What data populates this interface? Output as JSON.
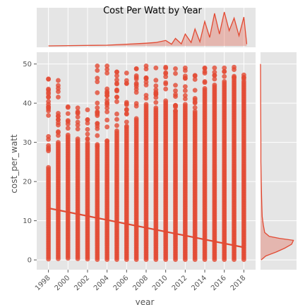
{
  "chart_data": {
    "type": "scatter",
    "title": "Cost Per Watt by Year",
    "xlabel": "year",
    "ylabel": "cost_per_watt",
    "xlim": [
      1996.8,
      2019.2
    ],
    "ylim": [
      -2.5,
      53
    ],
    "x_ticks": [
      "1998",
      "2000",
      "2002",
      "2004",
      "2006",
      "2008",
      "2010",
      "2012",
      "2014",
      "2016",
      "2018"
    ],
    "y_ticks": [
      "0",
      "10",
      "20",
      "30",
      "40",
      "50"
    ],
    "grid": true,
    "style": "ggplot",
    "scatter": {
      "years": [
        1998,
        1999,
        2000,
        2001,
        2002,
        2003,
        2004,
        2005,
        2006,
        2007,
        2008,
        2009,
        2010,
        2011,
        2012,
        2013,
        2014,
        2015,
        2016,
        2017,
        2018
      ],
      "max_values": [
        46.2,
        45.8,
        39.1,
        38.8,
        38.3,
        49.5,
        49.5,
        48.0,
        47.7,
        48.8,
        49.5,
        49.0,
        49.2,
        48.8,
        49.0,
        47.1,
        49.0,
        49.0,
        49.0,
        49.2,
        47.2
      ],
      "min_values": [
        0.2,
        0.3,
        0.4,
        0.3,
        0.2,
        0.1,
        0.1,
        0.1,
        0.1,
        0.1,
        0.1,
        0.1,
        0.1,
        0.1,
        0.1,
        0.1,
        0.1,
        0.1,
        0.1,
        0.1,
        0.1
      ],
      "dense_upper": [
        24.0,
        30.0,
        32.0,
        31.0,
        30.0,
        29.0,
        30.0,
        33.0,
        34.0,
        36.0,
        40.0,
        39.0,
        41.0,
        38.0,
        40.0,
        38.0,
        44.0,
        45.0,
        46.0,
        46.5,
        46.0
      ]
    },
    "regression_line": {
      "x": [
        1998,
        2018
      ],
      "y": [
        13.2,
        3.2
      ]
    },
    "top_marginal": {
      "type": "kde",
      "x": [
        1998,
        2004,
        2006,
        2008,
        2009,
        2010,
        2010.6,
        2011,
        2011.6,
        2012,
        2012.6,
        2013,
        2013.5,
        2014,
        2014.5,
        2015,
        2015.5,
        2016,
        2016.5,
        2017,
        2017.5,
        2018,
        2018.3
      ],
      "density": [
        0.0,
        0.02,
        0.05,
        0.08,
        0.1,
        0.16,
        0.05,
        0.22,
        0.06,
        0.35,
        0.1,
        0.5,
        0.12,
        0.72,
        0.25,
        0.96,
        0.35,
        1.0,
        0.45,
        0.82,
        0.3,
        0.85,
        0.05
      ]
    },
    "right_marginal": {
      "type": "kde",
      "y": [
        0,
        1,
        2,
        3,
        4,
        5,
        5.5,
        6,
        7,
        9,
        11,
        13,
        16,
        20,
        25,
        30,
        40,
        50
      ],
      "density": [
        0.02,
        0.15,
        0.45,
        0.7,
        0.9,
        0.95,
        0.55,
        0.25,
        0.12,
        0.08,
        0.05,
        0.04,
        0.03,
        0.02,
        0.01,
        0.01,
        0.005,
        0.0
      ]
    },
    "colors": {
      "points": "#e24a33",
      "panel_background": "#e5e5e5",
      "grid": "#ffffff"
    }
  }
}
